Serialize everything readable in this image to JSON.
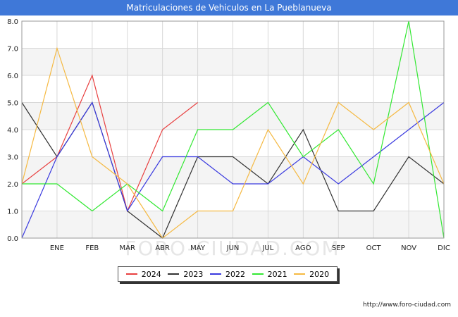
{
  "chart_data": {
    "type": "line",
    "title": "Matriculaciones de Vehiculos en La Pueblanueva",
    "categories": [
      "",
      "ENE",
      "FEB",
      "MAR",
      "ABR",
      "MAY",
      "JUN",
      "JUL",
      "AGO",
      "SEP",
      "OCT",
      "NOV",
      "DIC"
    ],
    "y_ticks": [
      "0.0",
      "1.0",
      "2.0",
      "3.0",
      "4.0",
      "5.0",
      "6.0",
      "7.0",
      "8.0"
    ],
    "ylim": [
      0,
      8
    ],
    "grid": true,
    "legend_position": "bottom",
    "series": [
      {
        "name": "2024",
        "color": "#e84040",
        "values": [
          2,
          3,
          6,
          1,
          4,
          5,
          null,
          null,
          null,
          null,
          null,
          null,
          null
        ]
      },
      {
        "name": "2023",
        "color": "#333333",
        "values": [
          5,
          3,
          5,
          1,
          0,
          3,
          3,
          2,
          4,
          1,
          1,
          3,
          2
        ]
      },
      {
        "name": "2022",
        "color": "#3a3adf",
        "values": [
          0,
          3,
          5,
          1,
          3,
          3,
          2,
          2,
          3,
          2,
          3,
          4,
          5
        ]
      },
      {
        "name": "2021",
        "color": "#33e833",
        "values": [
          2,
          2,
          1,
          2,
          1,
          4,
          4,
          5,
          3,
          4,
          2,
          8,
          0
        ]
      },
      {
        "name": "2020",
        "color": "#f5b942",
        "values": [
          2,
          7,
          3,
          2,
          0,
          1,
          1,
          4,
          2,
          5,
          4,
          5,
          2
        ]
      }
    ]
  },
  "watermark": "FORO-CIUDAD.COM",
  "footer": {
    "url": "http://www.foro-ciudad.com"
  }
}
